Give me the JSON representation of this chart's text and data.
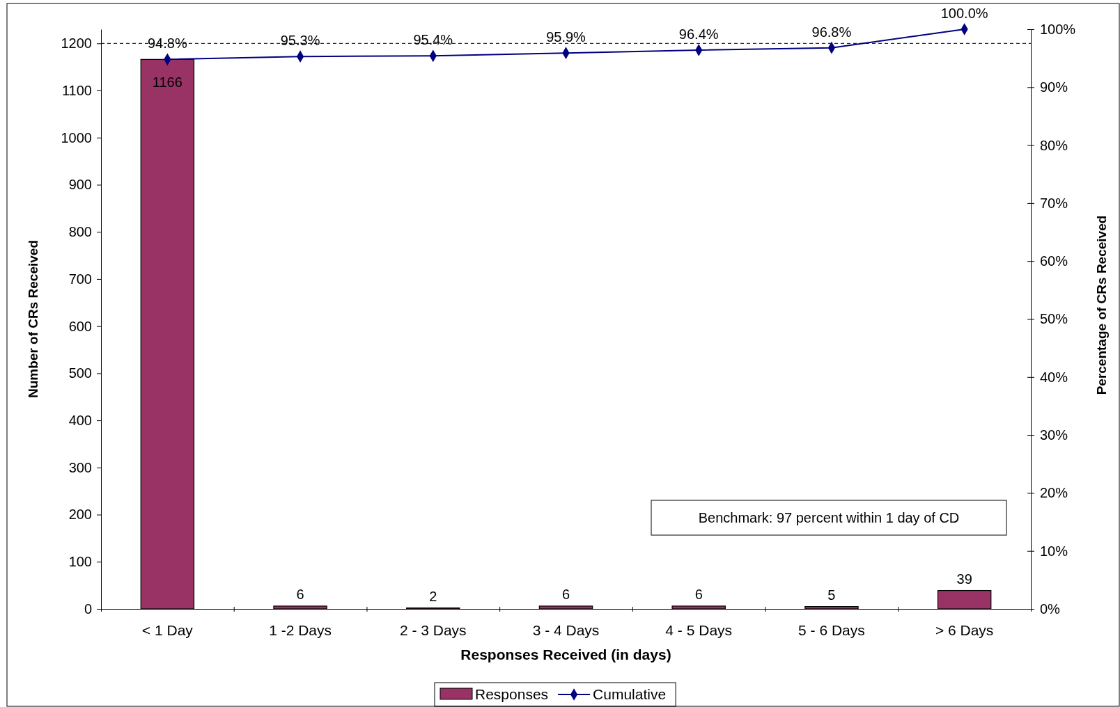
{
  "chart_data": {
    "type": "bar",
    "xlabel": "Responses Received (in days)",
    "ylabel": "Number of CRs Received",
    "y2label": "Percentage of CRs Received",
    "categories": [
      "< 1 Day",
      "1 -2 Days",
      "2 - 3 Days",
      "3 - 4 Days",
      "4 - 5 Days",
      "5 - 6 Days",
      "> 6 Days"
    ],
    "series": [
      {
        "name": "Responses",
        "color": "#993366",
        "values": [
          1166,
          6,
          2,
          6,
          6,
          5,
          39
        ],
        "value_labels": [
          "1166",
          "6",
          "2",
          "6",
          "6",
          "5",
          "39"
        ]
      },
      {
        "name": "Cumulative",
        "type": "line",
        "axis": "y2",
        "color": "#000080",
        "marker": "diamond",
        "values": [
          94.8,
          95.3,
          95.4,
          95.9,
          96.4,
          96.8,
          100.0
        ],
        "value_labels": [
          "94.8%",
          "95.3%",
          "95.4%",
          "95.9%",
          "96.4%",
          "96.8%",
          "100.0%"
        ]
      }
    ],
    "ylim": [
      0,
      1230
    ],
    "yticks": [
      0,
      100,
      200,
      300,
      400,
      500,
      600,
      700,
      800,
      900,
      1000,
      1100,
      1200
    ],
    "y2lim": [
      0,
      100
    ],
    "y2ticks": [
      {
        "value": 0,
        "label": "0%"
      },
      {
        "value": 10,
        "label": "10%"
      },
      {
        "value": 20,
        "label": "20%"
      },
      {
        "value": 30,
        "label": "30%"
      },
      {
        "value": 40,
        "label": "40%"
      },
      {
        "value": 50,
        "label": "50%"
      },
      {
        "value": 60,
        "label": "60%"
      },
      {
        "value": 70,
        "label": "70%"
      },
      {
        "value": 80,
        "label": "80%"
      },
      {
        "value": 90,
        "label": "90%"
      },
      {
        "value": 100,
        "label": "100%"
      }
    ],
    "ref_lines": [
      {
        "axis": "y",
        "value": 1200,
        "line_style": "dashed",
        "color": "#000000"
      }
    ],
    "annotations": [
      "Benchmark: 97 percent within 1 day of CD"
    ],
    "legend": "bottom",
    "grid": false
  }
}
